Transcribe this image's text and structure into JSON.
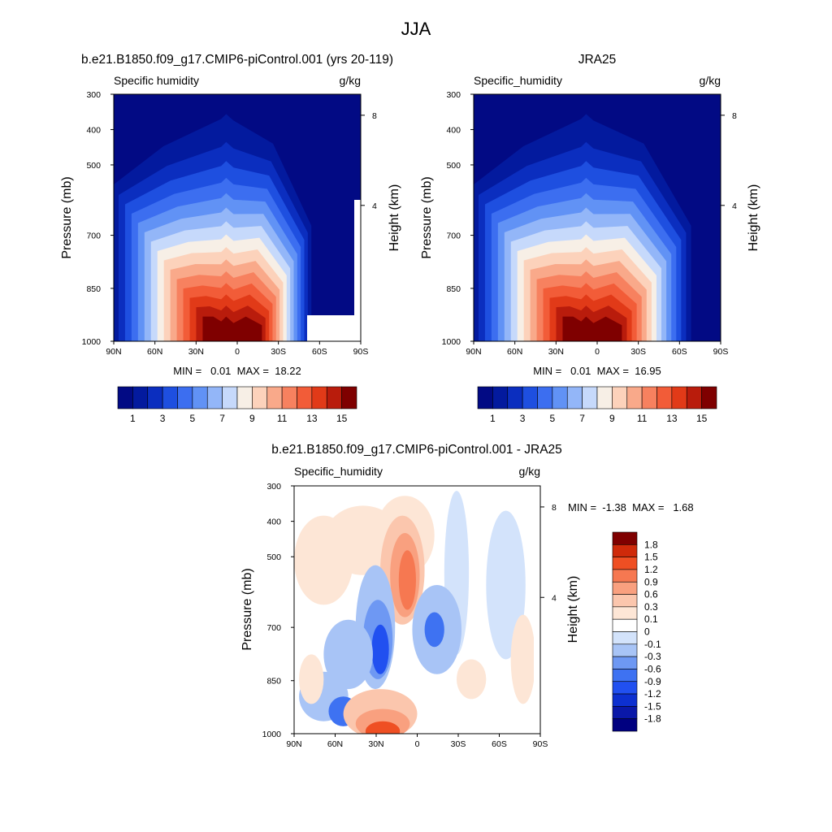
{
  "page": {
    "title": "JJA"
  },
  "palette": {
    "model_obs": [
      "#020a84",
      "#031a9e",
      "#0b2ebf",
      "#1e4fe0",
      "#3c6ef0",
      "#6192f5",
      "#93b6f8",
      "#c6d9fb",
      "#f7efe6",
      "#fcd2bb",
      "#f9a98a",
      "#f7815f",
      "#f25c38",
      "#e13a18",
      "#b91c0c",
      "#7f0000"
    ],
    "diff": [
      "#000080",
      "#0a18a8",
      "#0d30d0",
      "#2150f0",
      "#3e72f2",
      "#6e98f3",
      "#a8c4f6",
      "#d3e3fb",
      "#ffffff",
      "#fde6d6",
      "#fbc6ad",
      "#f9a07f",
      "#f67851",
      "#ef4f23",
      "#cf2a0a",
      "#7f0000"
    ]
  },
  "chart_data": [
    {
      "type": "heatmap",
      "title": "b.e21.B1850.f09_g17.CMIP6-piControl.001 (yrs 20-119)",
      "subtitle_left": "Specific humidity",
      "subtitle_right": "g/kg",
      "ylabel": "Pressure (mb)",
      "ylabel_right": "Height (km)",
      "x_ticks": [
        "90N",
        "60N",
        "30N",
        "0",
        "30S",
        "60S",
        "90S"
      ],
      "y_ticks": [
        "300",
        "400",
        "500",
        "700",
        "850",
        "1000"
      ],
      "y_right_ticks": [
        "8",
        "4"
      ],
      "stats": "MIN =   0.01  MAX =  18.22",
      "min": 0.01,
      "max": 18.22,
      "colorbar_labels": [
        "1",
        "3",
        "5",
        "7",
        "9",
        "11",
        "13",
        "15"
      ]
    },
    {
      "type": "heatmap",
      "title": "JRA25",
      "subtitle_left": "Specific_humidity",
      "subtitle_right": "g/kg",
      "ylabel": "Pressure (mb)",
      "ylabel_right": "Height (km)",
      "x_ticks": [
        "90N",
        "60N",
        "30N",
        "0",
        "30S",
        "60S",
        "90S"
      ],
      "y_ticks": [
        "300",
        "400",
        "500",
        "700",
        "850",
        "1000"
      ],
      "y_right_ticks": [
        "8",
        "4"
      ],
      "stats": "MIN =   0.01  MAX =  16.95",
      "min": 0.01,
      "max": 16.95,
      "colorbar_labels": [
        "1",
        "3",
        "5",
        "7",
        "9",
        "11",
        "13",
        "15"
      ]
    },
    {
      "type": "heatmap",
      "title": "b.e21.B1850.f09_g17.CMIP6-piControl.001 - JRA25",
      "subtitle_left": "Specific_humidity",
      "subtitle_right": "g/kg",
      "ylabel": "Pressure (mb)",
      "ylabel_right": "Height (km)",
      "x_ticks": [
        "90N",
        "60N",
        "30N",
        "0",
        "30S",
        "60S",
        "90S"
      ],
      "y_ticks": [
        "300",
        "400",
        "500",
        "700",
        "850",
        "1000"
      ],
      "y_right_ticks": [
        "8",
        "4"
      ],
      "stats": "MIN =  -1.38  MAX =   1.68",
      "min": -1.38,
      "max": 1.68,
      "colorbar_labels": [
        "1.8",
        "1.5",
        "1.2",
        "0.9",
        "0.6",
        "0.3",
        "0.1",
        "0",
        "-0.1",
        "-0.3",
        "-0.6",
        "-0.9",
        "-1.2",
        "-1.5",
        "-1.8"
      ]
    }
  ]
}
